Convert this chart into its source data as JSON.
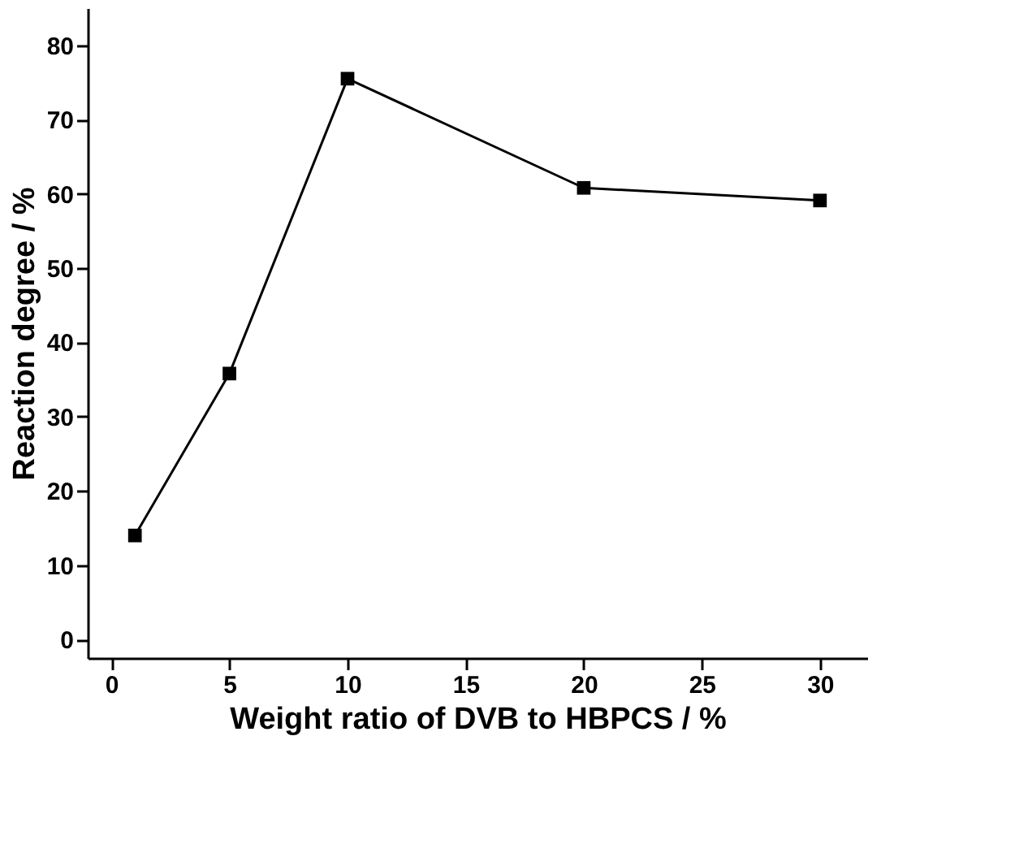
{
  "chart_data": {
    "type": "line",
    "xlabel": "Weight ratio of DVB to HBPCS / %",
    "ylabel": "Reaction degree / %",
    "x": [
      1,
      5,
      10,
      20,
      30
    ],
    "series": [
      {
        "color": "#000000",
        "values": [
          14,
          35.8,
          75.5,
          60.8,
          59.1
        ]
      }
    ],
    "xlim": [
      -1,
      32
    ],
    "ylim": [
      -2.5,
      85
    ],
    "xticks": [
      0,
      5,
      10,
      15,
      20,
      25,
      30
    ],
    "yticks": [
      0,
      10,
      20,
      30,
      40,
      50,
      60,
      70,
      80
    ],
    "marker": "square",
    "line_style": "solid"
  }
}
